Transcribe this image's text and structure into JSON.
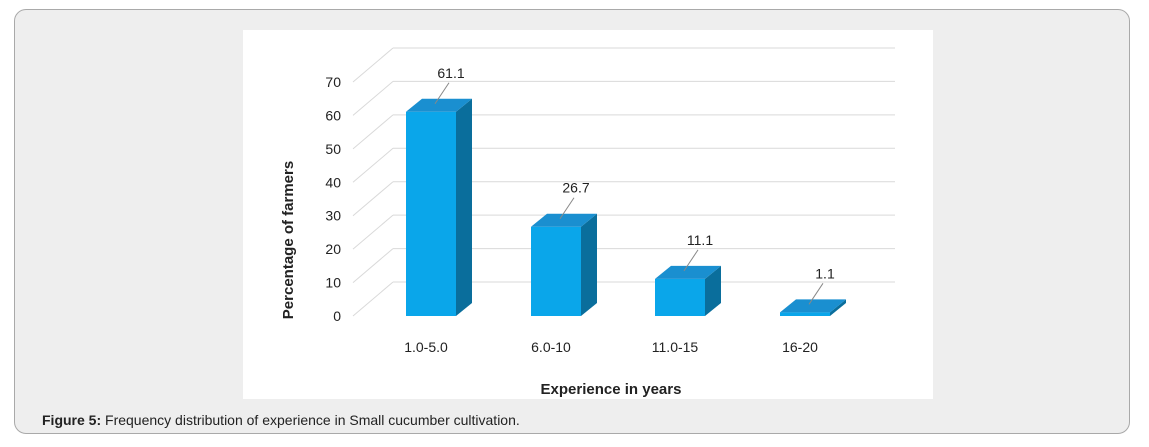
{
  "caption": {
    "label": "Figure 5:",
    "text": " Frequency distribution of experience in Small cucumber cultivation."
  },
  "chart_data": {
    "type": "bar",
    "three_d": true,
    "categories": [
      "1.0-5.0",
      "6.0-10",
      "11.0-15",
      "16-20"
    ],
    "values": [
      61.1,
      26.7,
      11.1,
      1.1
    ],
    "data_labels": [
      "61.1",
      "26.7",
      "11.1",
      "1.1"
    ],
    "ylabel": "Percentage of farmers",
    "xlabel": "Experience in years",
    "ylim": [
      0,
      70
    ],
    "yticks": [
      0,
      10,
      20,
      30,
      40,
      50,
      60,
      70
    ],
    "grid": true,
    "legend": "none",
    "colors": {
      "front": "#0aa6ea",
      "side": "#0a6e9c",
      "top": "#1a8fd0",
      "grid": "#d9d9d9"
    }
  }
}
